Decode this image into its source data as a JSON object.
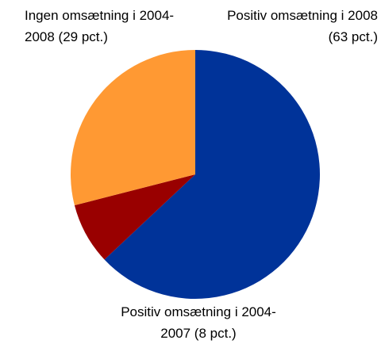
{
  "chart_data": {
    "type": "pie",
    "categories": [
      "Positiv omsætning i 2008 (63 pct.)",
      "Positiv omsætning i 2004-2007 (8 pct.)",
      "Ingen omsætning i 2004-2008 (29 pct.)"
    ],
    "values": [
      63,
      8,
      29
    ],
    "colors": [
      "#003399",
      "#990000",
      "#FF9933"
    ]
  }
}
